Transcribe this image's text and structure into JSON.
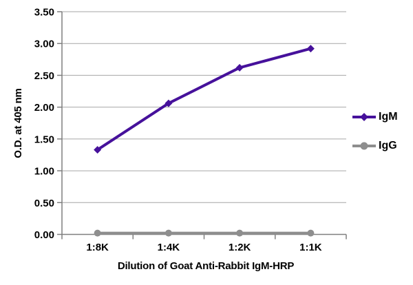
{
  "chart_data": {
    "type": "line",
    "title": "",
    "xlabel": "Dilution of Goat Anti-Rabbit IgM-HRP",
    "ylabel": "O.D. at 405 nm",
    "categories": [
      "1:8K",
      "1:4K",
      "1:2K",
      "1:1K"
    ],
    "series": [
      {
        "name": "IgM",
        "values": [
          1.33,
          2.06,
          2.62,
          2.92
        ],
        "color": "#46119b",
        "marker": "diamond"
      },
      {
        "name": "IgG",
        "values": [
          0.02,
          0.02,
          0.02,
          0.02
        ],
        "color": "#8e8e8e",
        "marker": "circle"
      }
    ],
    "ylim": [
      0,
      3.5
    ],
    "y_tick_step": 0.5,
    "y_ticks": [
      "0.00",
      "0.50",
      "1.00",
      "1.50",
      "2.00",
      "2.50",
      "3.00",
      "3.50"
    ],
    "grid": "horizontal",
    "legend_position": "right"
  },
  "colors": {
    "background": "#ffffff",
    "gridline": "#a6a6a6",
    "axis": "#7f7f7f",
    "text": "#000000"
  }
}
